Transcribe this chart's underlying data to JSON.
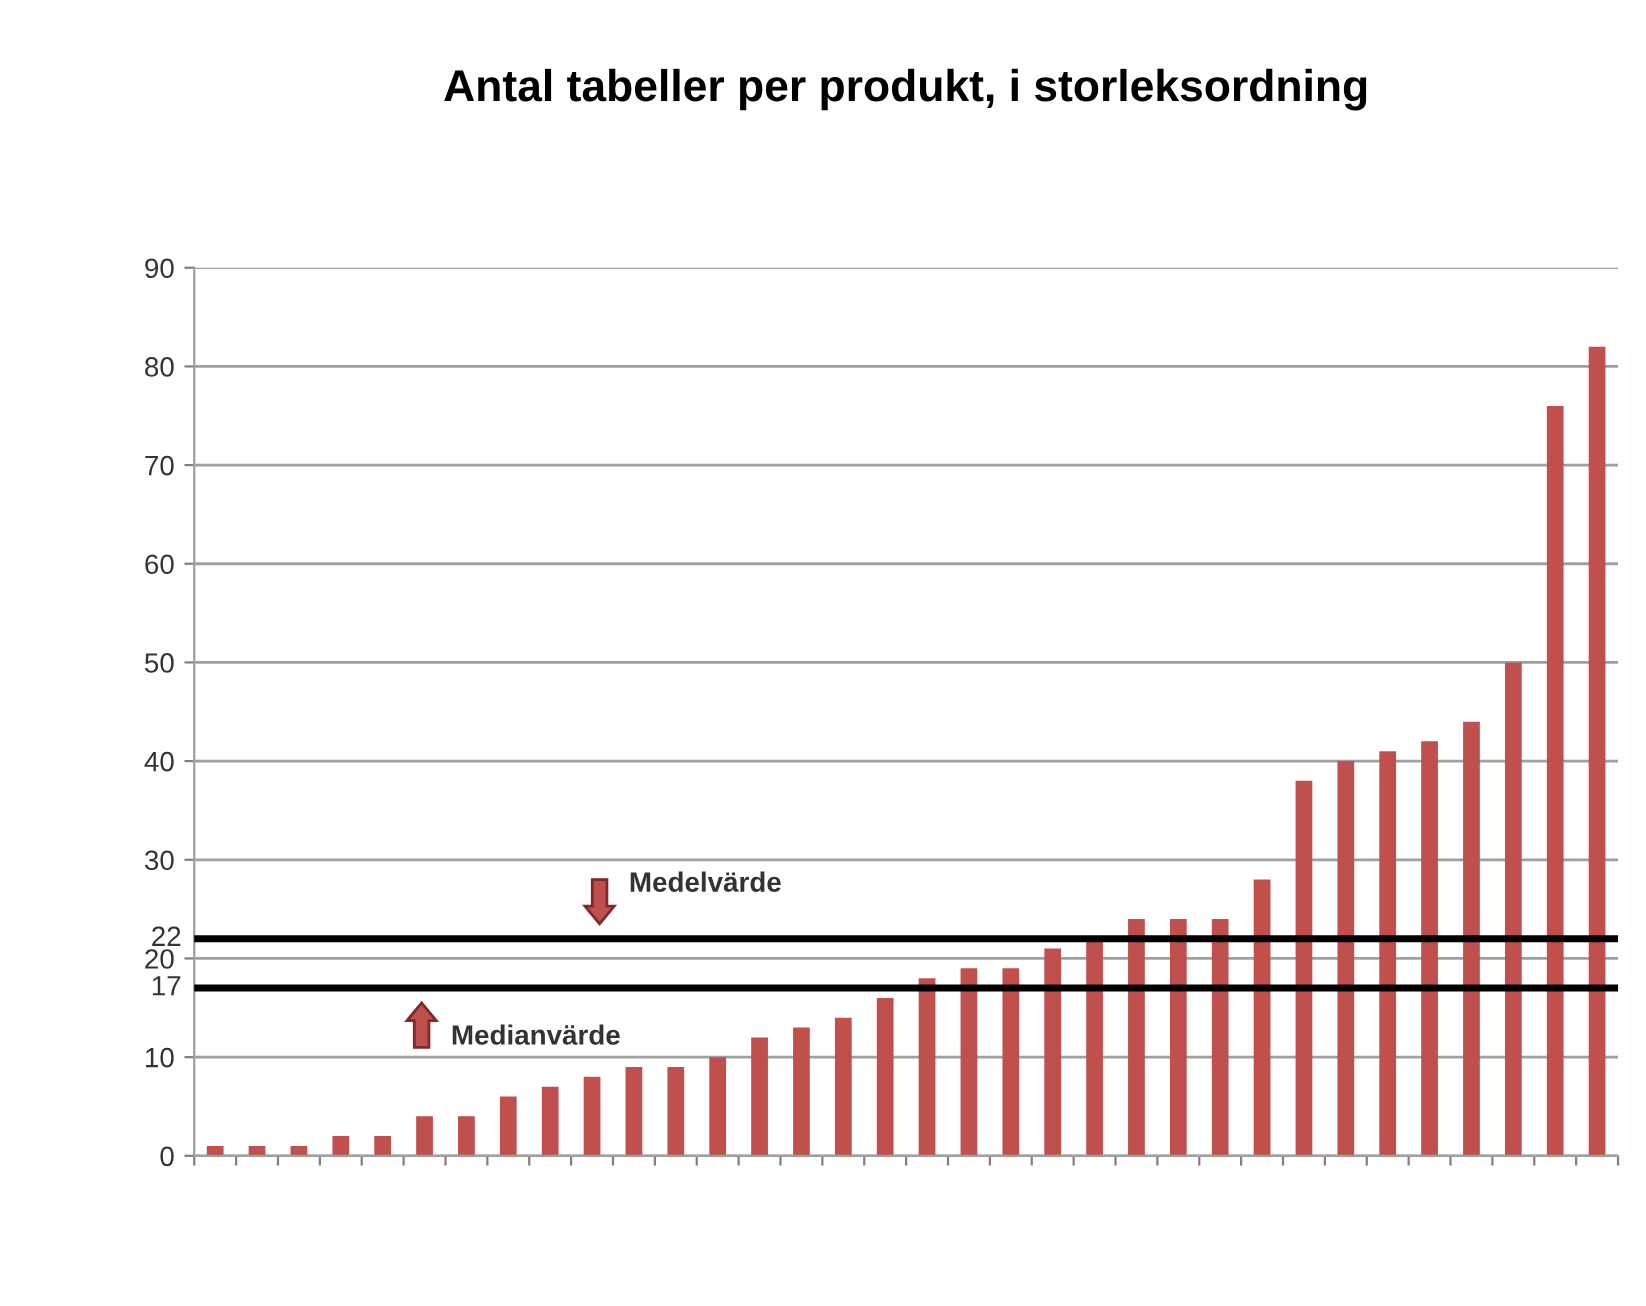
{
  "chart_data": {
    "type": "bar",
    "title": "Antal tabeller per produkt, i storleksordning",
    "categories": [
      null,
      null,
      null,
      null,
      null,
      null,
      null,
      null,
      null,
      null,
      null,
      null,
      null,
      null,
      null,
      null,
      null,
      null,
      null,
      null,
      null,
      null,
      null,
      null,
      null,
      null,
      null,
      null,
      null,
      null,
      null,
      null,
      null,
      null
    ],
    "values": [
      1,
      1,
      1,
      2,
      2,
      4,
      4,
      6,
      7,
      8,
      9,
      9,
      10,
      12,
      13,
      14,
      16,
      18,
      19,
      19,
      21,
      22,
      24,
      24,
      24,
      28,
      38,
      40,
      41,
      42,
      44,
      50,
      76,
      82
    ],
    "color": "#c0504d",
    "ylim": [
      0,
      90
    ],
    "yticks": [
      0,
      10,
      20,
      30,
      40,
      50,
      60,
      70,
      80,
      90
    ],
    "grid": "y",
    "ref_lines": [
      {
        "axis": "y",
        "value": 22,
        "label": "22",
        "color": "#000000"
      },
      {
        "axis": "y",
        "value": 17,
        "label": "17",
        "color": "#000000"
      }
    ],
    "annotations": [
      {
        "text": "Medelvärde",
        "y": 22
      },
      {
        "text": "Medianvärde",
        "y": 17
      }
    ]
  }
}
